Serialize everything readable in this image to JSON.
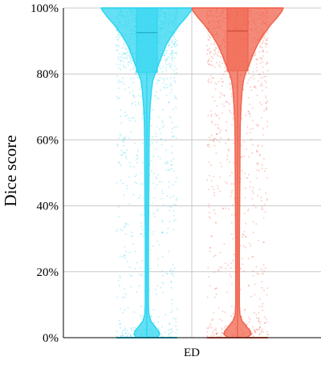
{
  "chart_data": {
    "type": "violin",
    "ylabel": "Dice score",
    "xlabel": "",
    "categories": [
      "ED"
    ],
    "ylim": [
      0,
      100
    ],
    "yticks": [
      0,
      20,
      40,
      60,
      80,
      100
    ],
    "ytick_labels": [
      "0%",
      "20%",
      "40%",
      "60%",
      "80%",
      "100%"
    ],
    "grid": "horizontal",
    "series": [
      {
        "color": "#2fd5f0",
        "box": {
          "min": 0,
          "q1": 80.5,
          "median": 92.5,
          "q3": 100,
          "max": 100
        },
        "density": [
          [
            0,
            0.22
          ],
          [
            1,
            0.28
          ],
          [
            2,
            0.26
          ],
          [
            3,
            0.2
          ],
          [
            5,
            0.09
          ],
          [
            7,
            0.045
          ],
          [
            10,
            0.035
          ],
          [
            20,
            0.035
          ],
          [
            30,
            0.035
          ],
          [
            40,
            0.04
          ],
          [
            50,
            0.045
          ],
          [
            60,
            0.05
          ],
          [
            65,
            0.055
          ],
          [
            70,
            0.07
          ],
          [
            75,
            0.1
          ],
          [
            78,
            0.13
          ],
          [
            80,
            0.18
          ],
          [
            83,
            0.26
          ],
          [
            86,
            0.34
          ],
          [
            89,
            0.43
          ],
          [
            92,
            0.56
          ],
          [
            95,
            0.72
          ],
          [
            97,
            0.85
          ],
          [
            99,
            0.96
          ],
          [
            100,
            1.0
          ]
        ]
      },
      {
        "color": "#f0644e",
        "box": {
          "min": 0,
          "q1": 81,
          "median": 93,
          "q3": 100,
          "max": 100
        },
        "density": [
          [
            0,
            0.2
          ],
          [
            1,
            0.3
          ],
          [
            2,
            0.28
          ],
          [
            3,
            0.22
          ],
          [
            5,
            0.1
          ],
          [
            7,
            0.05
          ],
          [
            10,
            0.04
          ],
          [
            20,
            0.04
          ],
          [
            30,
            0.04
          ],
          [
            40,
            0.045
          ],
          [
            50,
            0.05
          ],
          [
            60,
            0.055
          ],
          [
            65,
            0.06
          ],
          [
            70,
            0.075
          ],
          [
            75,
            0.1
          ],
          [
            78,
            0.13
          ],
          [
            80,
            0.17
          ],
          [
            83,
            0.26
          ],
          [
            86,
            0.34
          ],
          [
            89,
            0.44
          ],
          [
            92,
            0.57
          ],
          [
            95,
            0.73
          ],
          [
            97,
            0.86
          ],
          [
            99,
            0.97
          ],
          [
            100,
            1.0
          ]
        ]
      }
    ]
  }
}
